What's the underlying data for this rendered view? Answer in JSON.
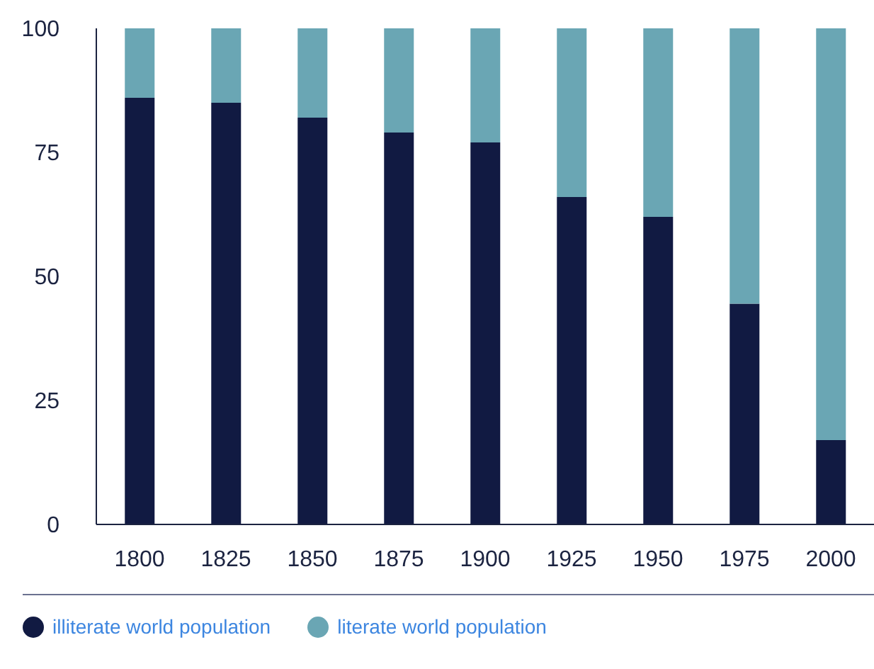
{
  "chart_data": {
    "type": "bar",
    "stacked": true,
    "categories": [
      "1800",
      "1825",
      "1850",
      "1875",
      "1900",
      "1925",
      "1950",
      "1975",
      "2000"
    ],
    "series": [
      {
        "name": "illiterate world population",
        "color": "#111a42",
        "values": [
          86,
          85,
          82,
          79,
          77,
          66,
          62,
          44.5,
          17
        ]
      },
      {
        "name": "literate world population",
        "color": "#6aa6b4",
        "values": [
          14,
          15,
          18,
          21,
          23,
          34,
          38,
          55.5,
          83
        ]
      }
    ],
    "ylim": [
      0,
      100
    ],
    "yticks": [
      0,
      25,
      50,
      75,
      100
    ],
    "grid": false,
    "legend": "bottom"
  }
}
